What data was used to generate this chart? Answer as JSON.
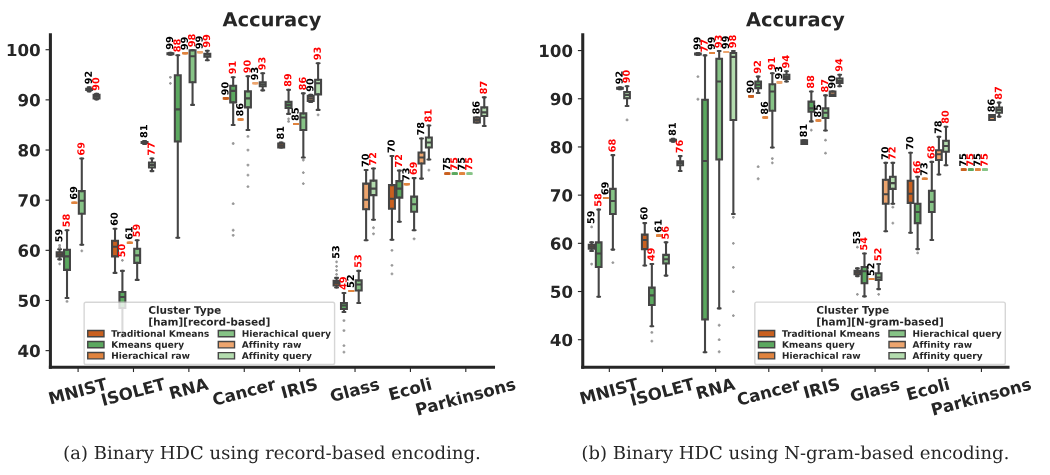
{
  "chart_data": [
    {
      "type": "box",
      "title": "Accuracy",
      "categories": [
        "MNIST",
        "ISOLET",
        "RNA",
        "Cancer",
        "IRIS",
        "Glass",
        "Ecoli",
        "Parkinsons"
      ],
      "ylim": [
        36.7,
        103
      ],
      "yticks": [
        40,
        50,
        60,
        70,
        80,
        90,
        100
      ],
      "legend": "bottom left",
      "legend_title": "Cluster Type\n[ham][record-based]",
      "annotations": [
        "(a) Binary HDC using record-based encoding."
      ],
      "series": [
        {
          "name": "Traditional Kmeans",
          "color": "#c9601f",
          "value_labels": [
            "59",
            "60",
            "99",
            "90",
            "81",
            "53",
            "70",
            "75"
          ],
          "boxes": [
            {
              "low": 58.2,
              "q1": 58.8,
              "median": 59.2,
              "q3": 59.6,
              "high": 60.2,
              "outliers": [
                57.3,
                60.6,
                61.0
              ]
            },
            {
              "low": 55.5,
              "q1": 58.8,
              "median": 60.7,
              "q3": 61.9,
              "high": 64.3
            },
            {
              "low": 99.0,
              "q1": 99.1,
              "median": 99.2,
              "q3": 99.3,
              "high": 99.4,
              "outliers": [
                93.3,
                94.5
              ]
            },
            {
              "low": 90.3,
              "q1": 90.3,
              "median": 90.3,
              "q3": 90.3,
              "high": 90.3
            },
            {
              "low": 80.5,
              "q1": 80.5,
              "median": 80.9,
              "q3": 81.3,
              "high": 81.5
            },
            {
              "low": 52.6,
              "q1": 53.0,
              "median": 53.5,
              "q3": 53.9,
              "high": 54.5,
              "outliers": [
                55.2,
                56.0,
                56.8,
                57.7
              ]
            },
            {
              "low": 62.1,
              "q1": 68.3,
              "median": 70.3,
              "q3": 73.0,
              "high": 78.8,
              "outliers": [
                55.3,
                57.0,
                60.0
              ]
            },
            {
              "low": 75.3,
              "q1": 75.3,
              "median": 75.3,
              "q3": 75.3,
              "high": 75.3
            }
          ]
        },
        {
          "name": "Kmeans query",
          "color": "#5ba85f",
          "value_labels": [
            "58",
            "50",
            "88",
            "91",
            "89",
            "49",
            "72",
            "75"
          ],
          "boxes": [
            {
              "low": 50.5,
              "q1": 56.1,
              "median": 58.8,
              "q3": 60.1,
              "high": 64.0,
              "outliers": [
                49.8
              ]
            },
            {
              "low": 42.8,
              "q1": 48.5,
              "median": 50.7,
              "q3": 51.7,
              "high": 55.9,
              "outliers": [
                58.0
              ]
            },
            {
              "low": 62.5,
              "q1": 81.7,
              "median": 88.1,
              "q3": 94.9,
              "high": 98.9
            },
            {
              "low": 85.0,
              "q1": 89.5,
              "median": 91.8,
              "q3": 92.8,
              "high": 94.5,
              "outliers": [
                63.0,
                64.0,
                69.3,
                81.3
              ]
            },
            {
              "low": 87.2,
              "q1": 88.4,
              "median": 89.0,
              "q3": 89.6,
              "high": 92.0,
              "outliers": [
                85.7,
                86.2
              ]
            },
            {
              "low": 47.7,
              "q1": 48.3,
              "median": 49.0,
              "q3": 49.5,
              "high": 51.5,
              "outliers": [
                39.7,
                41.0,
                44.0,
                46.0
              ]
            },
            {
              "low": 65.7,
              "q1": 70.5,
              "median": 72.3,
              "q3": 73.8,
              "high": 75.9
            },
            {
              "low": 75.3,
              "q1": 75.3,
              "median": 75.3,
              "q3": 75.3,
              "high": 75.3
            }
          ]
        },
        {
          "name": "Hierachical raw",
          "color": "#e0833e",
          "value_labels": [
            "69",
            "61",
            "99",
            "86",
            "85",
            "52",
            "73",
            "75"
          ],
          "boxes": [
            {
              "low": 69.5,
              "q1": 69.5,
              "median": 69.5,
              "q3": 69.5,
              "high": 69.5
            },
            {
              "low": 61.5,
              "q1": 61.5,
              "median": 61.5,
              "q3": 61.5,
              "high": 61.5
            },
            {
              "low": 99.3,
              "q1": 99.3,
              "median": 99.3,
              "q3": 99.3,
              "high": 99.3
            },
            {
              "low": 86.1,
              "q1": 86.1,
              "median": 86.1,
              "q3": 86.1,
              "high": 86.1
            },
            {
              "low": 85.2,
              "q1": 85.2,
              "median": 85.2,
              "q3": 85.2,
              "high": 85.2
            },
            {
              "low": 51.9,
              "q1": 51.9,
              "median": 51.9,
              "q3": 51.9,
              "high": 51.9
            },
            {
              "low": 73.2,
              "q1": 73.2,
              "median": 73.2,
              "q3": 73.2,
              "high": 73.2
            },
            {
              "low": 75.3,
              "q1": 75.3,
              "median": 75.3,
              "q3": 75.3,
              "high": 75.3
            }
          ]
        },
        {
          "name": "Hierachical query",
          "color": "#86c386",
          "value_labels": [
            "69",
            "59",
            "98",
            "90",
            "86",
            "53",
            "69",
            "75"
          ],
          "boxes": [
            {
              "low": 61.1,
              "q1": 67.3,
              "median": 69.9,
              "q3": 71.8,
              "high": 78.3,
              "outliers": [
                59.9
              ]
            },
            {
              "low": 54.1,
              "q1": 57.5,
              "median": 59.0,
              "q3": 60.3,
              "high": 62.0
            },
            {
              "low": 89.0,
              "q1": 93.5,
              "median": 98.7,
              "q3": 99.9,
              "high": 99.9
            },
            {
              "low": 84.0,
              "q1": 88.5,
              "median": 90.3,
              "q3": 91.7,
              "high": 94.7,
              "outliers": [
                72.7,
                75.0,
                77.0,
                80.0,
                82.7
              ]
            },
            {
              "low": 78.5,
              "q1": 84.0,
              "median": 86.5,
              "q3": 87.3,
              "high": 91.3,
              "outliers": [
                73.3,
                75.5,
                78.0
              ]
            },
            {
              "low": 49.5,
              "q1": 52.0,
              "median": 53.2,
              "q3": 54.0,
              "high": 55.9
            },
            {
              "low": 64.0,
              "q1": 67.7,
              "median": 69.2,
              "q3": 70.7,
              "high": 74.4,
              "outliers": [
                62.3
              ]
            },
            {
              "low": 75.3,
              "q1": 75.3,
              "median": 75.3,
              "q3": 75.3,
              "high": 75.3
            }
          ]
        },
        {
          "name": "Affinity raw",
          "color": "#eda56e",
          "value_labels": [
            "92",
            "81",
            "99",
            "93",
            "90",
            "70",
            "78",
            "86"
          ],
          "boxes": [
            {
              "low": 91.7,
              "q1": 92.0,
              "median": 92.1,
              "q3": 92.2,
              "high": 92.5
            },
            {
              "low": 81.2,
              "q1": 81.4,
              "median": 81.5,
              "q3": 81.6,
              "high": 81.8
            },
            {
              "low": 99.5,
              "q1": 99.5,
              "median": 99.5,
              "q3": 99.5,
              "high": 99.5
            },
            {
              "low": 93.3,
              "q1": 93.3,
              "median": 93.3,
              "q3": 93.3,
              "high": 93.3
            },
            {
              "low": 89.6,
              "q1": 89.8,
              "median": 90.3,
              "q3": 90.8,
              "high": 91.0
            },
            {
              "low": 62.0,
              "q1": 68.2,
              "median": 70.1,
              "q3": 73.3,
              "high": 76.0
            },
            {
              "low": 74.3,
              "q1": 77.3,
              "median": 78.5,
              "q3": 79.5,
              "high": 82.3
            },
            {
              "low": 85.5,
              "q1": 85.5,
              "median": 86.0,
              "q3": 86.5,
              "high": 86.5
            }
          ]
        },
        {
          "name": "Affinity query",
          "color": "#b3dcae",
          "value_labels": [
            "90",
            "77",
            "99",
            "93",
            "93",
            "72",
            "81",
            "87"
          ],
          "boxes": [
            {
              "low": 90.1,
              "q1": 90.3,
              "median": 90.7,
              "q3": 91.0,
              "high": 91.2
            },
            {
              "low": 75.8,
              "q1": 76.5,
              "median": 77.0,
              "q3": 77.5,
              "high": 78.3
            },
            {
              "low": 97.9,
              "q1": 98.6,
              "median": 99.0,
              "q3": 99.2,
              "high": 99.8
            },
            {
              "low": 91.9,
              "q1": 92.7,
              "median": 93.1,
              "q3": 93.5,
              "high": 95.3
            },
            {
              "low": 88.0,
              "q1": 91.1,
              "median": 93.3,
              "q3": 94.0,
              "high": 97.3,
              "outliers": [
                87.0
              ]
            },
            {
              "low": 66.1,
              "q1": 71.0,
              "median": 72.3,
              "q3": 73.9,
              "high": 76.3,
              "outliers": [
                63.3,
                64.5
              ]
            },
            {
              "low": 78.1,
              "q1": 80.5,
              "median": 81.5,
              "q3": 82.5,
              "high": 84.9,
              "outliers": [
                76.0
              ]
            },
            {
              "low": 84.8,
              "q1": 86.8,
              "median": 87.5,
              "q3": 88.5,
              "high": 90.5
            }
          ]
        }
      ]
    },
    {
      "type": "box",
      "title": "Accuracy",
      "categories": [
        "MNIST",
        "ISOLET",
        "RNA",
        "Cancer",
        "IRIS",
        "Glass",
        "Ecoli",
        "Parkinsons"
      ],
      "ylim": [
        34.3,
        103.3
      ],
      "yticks": [
        40,
        50,
        60,
        70,
        80,
        90,
        100
      ],
      "legend": "bottom right",
      "legend_title": "Cluster Type\n[ham][N-gram-based]",
      "annotations": [
        "(b) Binary HDC using N-gram-based encoding."
      ],
      "series": [
        {
          "name": "Traditional Kmeans",
          "color": "#c9601f",
          "value_labels": [
            "59",
            "60",
            "99",
            "90",
            "81",
            "53",
            "70",
            "75"
          ],
          "boxes": [
            {
              "low": 58.4,
              "q1": 58.9,
              "median": 59.3,
              "q3": 59.7,
              "high": 60.2,
              "outliers": [
                55.7,
                63.4
              ]
            },
            {
              "low": 55.4,
              "q1": 58.8,
              "median": 60.7,
              "q3": 61.8,
              "high": 64.2
            },
            {
              "low": 99.1,
              "q1": 99.2,
              "median": 99.3,
              "q3": 99.4,
              "high": 99.5,
              "outliers": [
                89.9,
                94.6
              ]
            },
            {
              "low": 90.5,
              "q1": 90.5,
              "median": 90.5,
              "q3": 90.5,
              "high": 90.5
            },
            {
              "low": 80.6,
              "q1": 80.6,
              "median": 81.0,
              "q3": 81.4,
              "high": 81.4
            },
            {
              "low": 53.2,
              "q1": 53.6,
              "median": 54.0,
              "q3": 54.3,
              "high": 54.8,
              "outliers": [
                49.4,
                59.2
              ]
            },
            {
              "low": 62.2,
              "q1": 68.4,
              "median": 70.3,
              "q3": 73.0,
              "high": 78.8
            },
            {
              "low": 75.3,
              "q1": 75.3,
              "median": 75.3,
              "q3": 75.3,
              "high": 75.3
            }
          ]
        },
        {
          "name": "Kmeans query",
          "color": "#5ba85f",
          "value_labels": [
            "58",
            "49",
            "77",
            "92",
            "88",
            "54",
            "66",
            "75"
          ],
          "boxes": [
            {
              "low": 48.9,
              "q1": 55.1,
              "median": 57.9,
              "q3": 60.2,
              "high": 67.0
            },
            {
              "low": 42.8,
              "q1": 47.2,
              "median": 49.2,
              "q3": 50.8,
              "high": 55.7,
              "outliers": [
                39.7,
                41.5
              ]
            },
            {
              "low": 37.4,
              "q1": 44.2,
              "median": 77.1,
              "q3": 89.8,
              "high": 99.0
            },
            {
              "low": 91.2,
              "q1": 92.2,
              "median": 92.9,
              "q3": 93.6,
              "high": 94.6,
              "outliers": [
                73.4,
                75.9
              ]
            },
            {
              "low": 85.3,
              "q1": 87.3,
              "median": 88.0,
              "q3": 89.4,
              "high": 91.5,
              "outliers": [
                83.5
              ]
            },
            {
              "low": 49.0,
              "q1": 51.7,
              "median": 54.2,
              "q3": 55.1,
              "high": 57.9
            },
            {
              "low": 58.8,
              "q1": 64.2,
              "median": 66.5,
              "q3": 68.2,
              "high": 73.8,
              "outliers": [
                58.0
              ]
            },
            {
              "low": 75.3,
              "q1": 75.3,
              "median": 75.3,
              "q3": 75.3,
              "high": 75.3
            }
          ]
        },
        {
          "name": "Hierachical raw",
          "color": "#e0833e",
          "value_labels": [
            "69",
            "61",
            "99",
            "86",
            "85",
            "52",
            "73",
            "75"
          ],
          "boxes": [
            {
              "low": 69.4,
              "q1": 69.4,
              "median": 69.4,
              "q3": 69.4,
              "high": 69.4
            },
            {
              "low": 61.6,
              "q1": 61.6,
              "median": 61.6,
              "q3": 61.6,
              "high": 61.6
            },
            {
              "low": 99.5,
              "q1": 99.5,
              "median": 99.5,
              "q3": 99.5,
              "high": 99.5
            },
            {
              "low": 86.1,
              "q1": 86.1,
              "median": 86.1,
              "q3": 86.1,
              "high": 86.1
            },
            {
              "low": 85.5,
              "q1": 85.5,
              "median": 85.5,
              "q3": 85.5,
              "high": 85.5
            },
            {
              "low": 52.6,
              "q1": 52.6,
              "median": 52.6,
              "q3": 52.6,
              "high": 52.6
            },
            {
              "low": 73.4,
              "q1": 73.4,
              "median": 73.4,
              "q3": 73.4,
              "high": 73.4
            },
            {
              "low": 75.3,
              "q1": 75.3,
              "median": 75.3,
              "q3": 75.3,
              "high": 75.3
            }
          ]
        },
        {
          "name": "Hierachical query",
          "color": "#86c386",
          "value_labels": [
            "68",
            "56",
            "93",
            "91",
            "87",
            "52",
            "68",
            "75"
          ],
          "boxes": [
            {
              "low": 58.7,
              "q1": 66.1,
              "median": 68.8,
              "q3": 71.3,
              "high": 78.3,
              "outliers": [
                56.0
              ]
            },
            {
              "low": 53.3,
              "q1": 55.8,
              "median": 56.7,
              "q3": 57.6,
              "high": 60.2
            },
            {
              "low": 46.5,
              "q1": 77.4,
              "median": 93.6,
              "q3": 98.3,
              "high": 99.9,
              "outliers": [
                37.5,
                40.0,
                43.0
              ]
            },
            {
              "low": 79.9,
              "q1": 87.5,
              "median": 91.5,
              "q3": 93.0,
              "high": 95.3,
              "outliers": [
                76.7,
                77.6
              ]
            },
            {
              "low": 83.4,
              "q1": 86.0,
              "median": 87.1,
              "q3": 88.0,
              "high": 90.7,
              "outliers": [
                78.7,
                81.4
              ]
            },
            {
              "low": 50.5,
              "q1": 52.4,
              "median": 52.9,
              "q3": 53.8,
              "high": 55.7,
              "outliers": [
                49.4
              ]
            },
            {
              "low": 60.7,
              "q1": 66.5,
              "median": 68.6,
              "q3": 70.9,
              "high": 76.9
            },
            {
              "low": 75.3,
              "q1": 75.3,
              "median": 75.3,
              "q3": 75.3,
              "high": 75.3
            }
          ]
        },
        {
          "name": "Affinity raw",
          "color": "#eda56e",
          "value_labels": [
            "92",
            "81",
            "99",
            "93",
            "90",
            "70",
            "78",
            "86"
          ],
          "boxes": [
            {
              "low": 92.0,
              "q1": 92.1,
              "median": 92.2,
              "q3": 92.3,
              "high": 92.4
            },
            {
              "low": 81.1,
              "q1": 81.3,
              "median": 81.4,
              "q3": 81.5,
              "high": 81.7
            },
            {
              "low": 99.7,
              "q1": 99.7,
              "median": 99.7,
              "q3": 99.7,
              "high": 99.7
            },
            {
              "low": 93.4,
              "q1": 93.4,
              "median": 93.4,
              "q3": 93.4,
              "high": 93.4
            },
            {
              "low": 90.6,
              "q1": 90.6,
              "median": 90.9,
              "q3": 91.5,
              "high": 91.5
            },
            {
              "low": 62.5,
              "q1": 68.2,
              "median": 70.2,
              "q3": 73.2,
              "high": 76.7
            },
            {
              "low": 74.3,
              "q1": 77.3,
              "median": 78.5,
              "q3": 79.3,
              "high": 82.1
            },
            {
              "low": 85.6,
              "q1": 85.6,
              "median": 86.2,
              "q3": 86.6,
              "high": 86.6
            }
          ]
        },
        {
          "name": "Affinity query",
          "color": "#b3dcae",
          "value_labels": [
            "90",
            "76",
            "98",
            "94",
            "94",
            "72",
            "80",
            "87"
          ],
          "boxes": [
            {
              "low": 88.5,
              "q1": 90.1,
              "median": 90.8,
              "q3": 91.4,
              "high": 92.6,
              "outliers": [
                85.6
              ]
            },
            {
              "low": 75.0,
              "q1": 76.2,
              "median": 76.7,
              "q3": 77.0,
              "high": 78.1
            },
            {
              "low": 66.1,
              "q1": 85.6,
              "median": 98.7,
              "q3": 99.5,
              "high": 99.9,
              "outliers": [
                45.0,
                50.0,
                55.0,
                60.0,
                65.4
              ]
            },
            {
              "low": 93.6,
              "q1": 94.1,
              "median": 94.5,
              "q3": 95.0,
              "high": 95.7
            },
            {
              "low": 92.6,
              "q1": 93.3,
              "median": 93.7,
              "q3": 94.2,
              "high": 95.0
            },
            {
              "low": 68.2,
              "q1": 71.3,
              "median": 72.5,
              "q3": 73.8,
              "high": 76.7,
              "outliers": [
                64.2,
                67.5
              ]
            },
            {
              "low": 76.2,
              "q1": 79.0,
              "median": 80.2,
              "q3": 81.3,
              "high": 84.2
            },
            {
              "low": 86.3,
              "q1": 87.1,
              "median": 87.7,
              "q3": 88.2,
              "high": 89.2
            }
          ]
        }
      ]
    }
  ]
}
